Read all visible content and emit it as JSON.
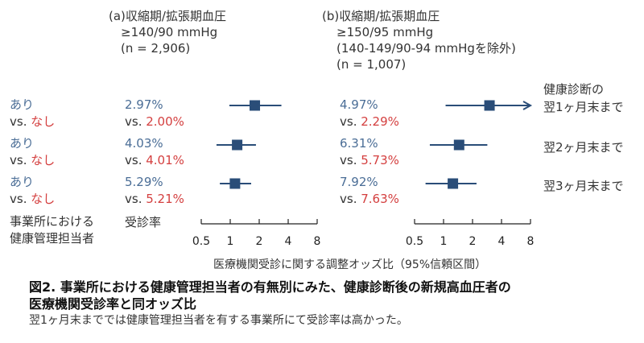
{
  "panels": [
    {
      "header": [
        "(a)収縮期/拡張期血圧",
        "≥140/90 mmHg",
        "(n = 2,906)"
      ],
      "rows": [
        {
          "rate_yes": "2.97%",
          "rate_no_prefix": "vs. ",
          "rate_no": "2.00%"
        },
        {
          "rate_yes": "4.03%",
          "rate_no_prefix": "vs. ",
          "rate_no": "4.01%"
        },
        {
          "rate_yes": "5.29%",
          "rate_no_prefix": "vs. ",
          "rate_no": "5.21%"
        }
      ]
    },
    {
      "header": [
        "(b)収縮期/拡張期血圧",
        "≥150/95 mmHg",
        "(140-149/90-94 mmHgを除外)",
        "(n = 1,007)"
      ],
      "rows": [
        {
          "rate_yes": "4.97%",
          "rate_no_prefix": "vs. ",
          "rate_no": "2.29%"
        },
        {
          "rate_yes": "6.31%",
          "rate_no_prefix": "vs. ",
          "rate_no": "5.73%"
        },
        {
          "rate_yes": "7.92%",
          "rate_no_prefix": "vs. ",
          "rate_no": "7.63%"
        }
      ]
    }
  ],
  "row_labels": {
    "yes": "あり",
    "vs": "vs. ",
    "no": "なし"
  },
  "right_labels": [
    [
      "健康診断の",
      "翌1ヶ月末まで"
    ],
    [
      "翌2ヶ月末まで"
    ],
    [
      "翌3ヶ月末まで"
    ]
  ],
  "bottom_left": [
    "事業所における",
    "健康管理担当者"
  ],
  "rate_header": "受診率",
  "axis_title": "医療機関受診に関する調整オッズ比（95%信頼区間）",
  "caption": {
    "title_line1": "図2. 事業所における健康管理担当者の有無別にみた、健康診断後の新規高血圧者の",
    "title_line2": "医療機関受診率と同オッズ比",
    "subtitle": "翌1ヶ月末まででは健康管理担当者を有する事業所にて受診率は高かった。"
  },
  "colors": {
    "marker": "#2a4d78",
    "yes_text": "#4a6d96",
    "no_text": "#d43f3f"
  },
  "chart_data": [
    {
      "type": "scatter",
      "title": "(a)収縮期/拡張期血圧 ≥140/90 mmHg (n = 2,906)",
      "xlabel": "医療機関受診に関する調整オッズ比（95%信頼区間）",
      "xscale": "log2",
      "xlim": [
        0.5,
        8
      ],
      "xticks": [
        0.5,
        1,
        2,
        4,
        8
      ],
      "xtick_labels": [
        "0.5",
        "1",
        "2",
        "4",
        "8"
      ],
      "categories": [
        "翌1ヶ月末まで",
        "翌2ヶ月末まで",
        "翌3ヶ月末まで"
      ],
      "or": [
        1.8,
        1.18,
        1.12
      ],
      "low": [
        0.98,
        0.72,
        0.78
      ],
      "high": [
        3.4,
        1.85,
        1.65
      ],
      "arrow_high": [
        false,
        false,
        false
      ]
    },
    {
      "type": "scatter",
      "title": "(b)収縮期/拡張期血圧 ≥150/95 mmHg (n = 1,007)",
      "xlabel": "医療機関受診に関する調整オッズ比（95%信頼区間）",
      "xscale": "log2",
      "xlim": [
        0.5,
        8
      ],
      "xticks": [
        0.5,
        1,
        2,
        4,
        8
      ],
      "xtick_labels": [
        "0.5",
        "1",
        "2",
        "4",
        "8"
      ],
      "categories": [
        "翌1ヶ月末まで",
        "翌2ヶ月末まで",
        "翌3ヶ月末まで"
      ],
      "or": [
        3.0,
        1.45,
        1.25
      ],
      "low": [
        1.05,
        0.72,
        0.65
      ],
      "high": [
        8.0,
        2.85,
        2.2
      ],
      "arrow_high": [
        true,
        false,
        false
      ]
    }
  ]
}
